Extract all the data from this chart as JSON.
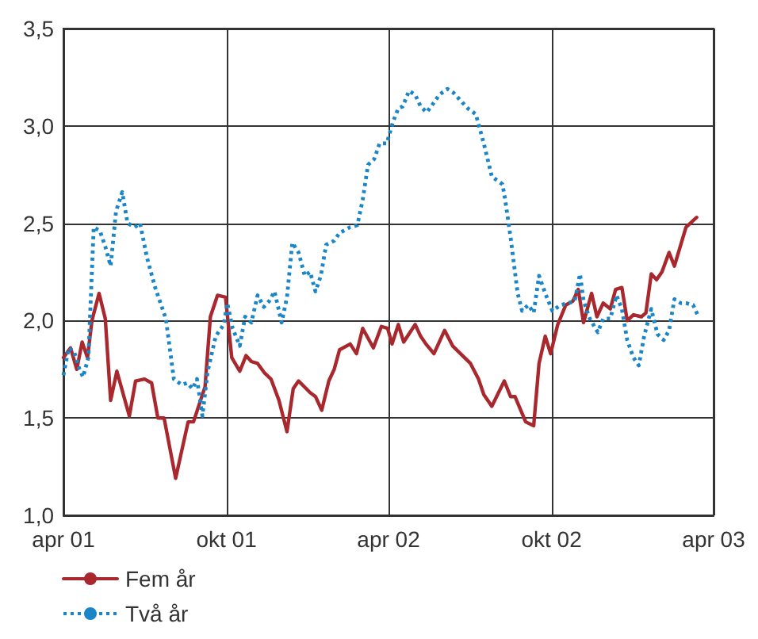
{
  "chart_data": {
    "type": "line",
    "xlim": [
      "2001-04-01",
      "2003-04-01"
    ],
    "ylim": [
      1.0,
      3.5
    ],
    "xticks": [
      {
        "value": "2001-04-01",
        "label": "apr 01"
      },
      {
        "value": "2001-10-01",
        "label": "okt 01"
      },
      {
        "value": "2002-04-01",
        "label": "apr 02"
      },
      {
        "value": "2002-10-01",
        "label": "okt 02"
      },
      {
        "value": "2003-04-01",
        "label": "apr 03"
      }
    ],
    "yticks": [
      {
        "value": 1.0,
        "label": "1,0"
      },
      {
        "value": 1.5,
        "label": "1,5"
      },
      {
        "value": 2.0,
        "label": "2,0"
      },
      {
        "value": 2.5,
        "label": "2,5"
      },
      {
        "value": 3.0,
        "label": "3,0"
      },
      {
        "value": 3.5,
        "label": "3,5"
      }
    ],
    "grid": true,
    "legend": "bottom left",
    "marker": "none",
    "series": [
      {
        "name": "Fem år",
        "color": "#a8282e",
        "line_style": "solid",
        "x": [
          "2001-04-01",
          "2001-04-09",
          "2001-04-16",
          "2001-04-22",
          "2001-04-28",
          "2001-05-03",
          "2001-05-11",
          "2001-05-18",
          "2001-05-24",
          "2001-05-31",
          "2001-06-14",
          "2001-06-21",
          "2001-07-01",
          "2001-07-09",
          "2001-07-16",
          "2001-07-23",
          "2001-08-05",
          "2001-08-19",
          "2001-08-25",
          "2001-09-07",
          "2001-09-13",
          "2001-09-21",
          "2001-09-30",
          "2001-10-07",
          "2001-10-16",
          "2001-10-23",
          "2001-10-29",
          "2001-11-05",
          "2001-11-13",
          "2001-11-20",
          "2001-11-29",
          "2001-12-08",
          "2001-12-15",
          "2001-12-21",
          "2002-01-03",
          "2002-01-09",
          "2002-01-16",
          "2002-01-24",
          "2002-01-30",
          "2002-02-05",
          "2002-02-17",
          "2002-02-24",
          "2002-03-03",
          "2002-03-15",
          "2002-03-24",
          "2002-03-31",
          "2002-04-05",
          "2002-04-12",
          "2002-04-18",
          "2002-05-01",
          "2002-05-07",
          "2002-05-13",
          "2002-05-22",
          "2002-06-03",
          "2002-06-12",
          "2002-07-02",
          "2002-07-11",
          "2002-07-17",
          "2002-07-26",
          "2002-08-09",
          "2002-08-16",
          "2002-08-21",
          "2002-09-02",
          "2002-09-11",
          "2002-09-17",
          "2002-09-24",
          "2002-09-30",
          "2002-10-08",
          "2002-10-17",
          "2002-10-25",
          "2002-10-31",
          "2002-11-06",
          "2002-11-15",
          "2002-11-21",
          "2002-11-28",
          "2002-12-06",
          "2002-12-12",
          "2002-12-19",
          "2002-12-25",
          "2003-01-01",
          "2003-01-10",
          "2003-01-15",
          "2003-01-21",
          "2003-01-27",
          "2003-02-02",
          "2003-02-10",
          "2003-02-16",
          "2003-03-01",
          "2003-03-13"
        ],
        "values": [
          1.81,
          1.86,
          1.75,
          1.89,
          1.81,
          2.0,
          2.14,
          2.01,
          1.59,
          1.74,
          1.51,
          1.69,
          1.7,
          1.68,
          1.5,
          1.5,
          1.19,
          1.48,
          1.48,
          1.66,
          2.02,
          2.13,
          2.12,
          1.81,
          1.74,
          1.82,
          1.79,
          1.78,
          1.73,
          1.7,
          1.59,
          1.43,
          1.65,
          1.69,
          1.63,
          1.61,
          1.54,
          1.69,
          1.75,
          1.85,
          1.88,
          1.83,
          1.96,
          1.86,
          1.97,
          1.96,
          1.88,
          1.98,
          1.89,
          1.98,
          1.92,
          1.88,
          1.83,
          1.95,
          1.87,
          1.78,
          1.7,
          1.62,
          1.56,
          1.69,
          1.61,
          1.61,
          1.48,
          1.46,
          1.78,
          1.92,
          1.83,
          1.98,
          2.08,
          2.1,
          2.16,
          1.99,
          2.14,
          2.02,
          2.09,
          2.06,
          2.16,
          2.17,
          2.0,
          2.03,
          2.02,
          2.04,
          2.24,
          2.21,
          2.25,
          2.35,
          2.28,
          2.48,
          2.53
        ]
      },
      {
        "name": "Två år",
        "color": "#1a86c8",
        "line_style": "dotted",
        "x": [
          "2001-04-01",
          "2001-04-07",
          "2001-04-13",
          "2001-04-19",
          "2001-04-23",
          "2001-04-29",
          "2001-05-05",
          "2001-05-12",
          "2001-05-18",
          "2001-05-24",
          "2001-05-30",
          "2001-06-06",
          "2001-06-12",
          "2001-06-20",
          "2001-06-26",
          "2001-07-04",
          "2001-07-13",
          "2001-07-19",
          "2001-07-25",
          "2001-08-03",
          "2001-08-12",
          "2001-08-18",
          "2001-08-24",
          "2001-08-29",
          "2001-09-04",
          "2001-09-10",
          "2001-09-19",
          "2001-09-28",
          "2001-10-02",
          "2001-10-08",
          "2001-10-16",
          "2001-10-22",
          "2001-10-29",
          "2001-11-05",
          "2001-11-12",
          "2001-11-18",
          "2001-11-24",
          "2001-12-02",
          "2001-12-08",
          "2001-12-14",
          "2001-12-21",
          "2001-12-28",
          "2002-01-03",
          "2002-01-09",
          "2002-01-15",
          "2002-01-21",
          "2002-01-30",
          "2002-02-05",
          "2002-02-17",
          "2002-02-25",
          "2002-03-03",
          "2002-03-09",
          "2002-03-16",
          "2002-03-22",
          "2002-03-30",
          "2002-04-06",
          "2002-04-12",
          "2002-04-17",
          "2002-04-24",
          "2002-05-01",
          "2002-05-07",
          "2002-05-14",
          "2002-05-22",
          "2002-05-28",
          "2002-06-06",
          "2002-06-13",
          "2002-06-23",
          "2002-06-29",
          "2002-07-08",
          "2002-07-17",
          "2002-07-26",
          "2002-08-01",
          "2002-08-07",
          "2002-08-10",
          "2002-08-16",
          "2002-08-24",
          "2002-08-29",
          "2002-09-05",
          "2002-09-11",
          "2002-09-17",
          "2002-09-24",
          "2002-10-02",
          "2002-10-11",
          "2002-10-20",
          "2002-10-27",
          "2002-11-02",
          "2002-11-06",
          "2002-11-13",
          "2002-11-22",
          "2002-11-28",
          "2002-12-06",
          "2002-12-13",
          "2002-12-19",
          "2002-12-25",
          "2003-01-01",
          "2003-01-07",
          "2003-01-13",
          "2003-01-21",
          "2003-01-28",
          "2003-02-04",
          "2003-02-10",
          "2003-02-16",
          "2003-02-23",
          "2003-03-01",
          "2003-03-09",
          "2003-03-15"
        ],
        "values": [
          1.72,
          1.86,
          1.84,
          1.75,
          1.71,
          1.81,
          2.48,
          2.46,
          2.38,
          2.28,
          2.56,
          2.66,
          2.5,
          2.48,
          2.5,
          2.32,
          2.17,
          2.09,
          2.01,
          1.7,
          1.67,
          1.68,
          1.65,
          1.7,
          1.51,
          1.74,
          1.92,
          1.98,
          2.09,
          1.96,
          1.87,
          2.02,
          1.99,
          2.13,
          2.07,
          2.1,
          2.15,
          1.99,
          2.12,
          2.4,
          2.35,
          2.23,
          2.25,
          2.15,
          2.23,
          2.39,
          2.41,
          2.45,
          2.48,
          2.49,
          2.62,
          2.8,
          2.83,
          2.91,
          2.91,
          3.02,
          3.09,
          3.1,
          3.18,
          3.16,
          3.1,
          3.07,
          3.12,
          3.16,
          3.19,
          3.17,
          3.12,
          3.09,
          3.06,
          2.91,
          2.74,
          2.72,
          2.7,
          2.62,
          2.43,
          2.14,
          2.05,
          2.08,
          2.04,
          2.23,
          2.14,
          2.05,
          2.08,
          2.09,
          2.1,
          2.24,
          2.1,
          2.01,
          1.94,
          2.01,
          2.01,
          2.13,
          2.06,
          1.9,
          1.81,
          1.77,
          1.92,
          2.06,
          1.93,
          1.9,
          1.95,
          2.11,
          2.09,
          2.09,
          2.08,
          2.02
        ]
      }
    ]
  }
}
